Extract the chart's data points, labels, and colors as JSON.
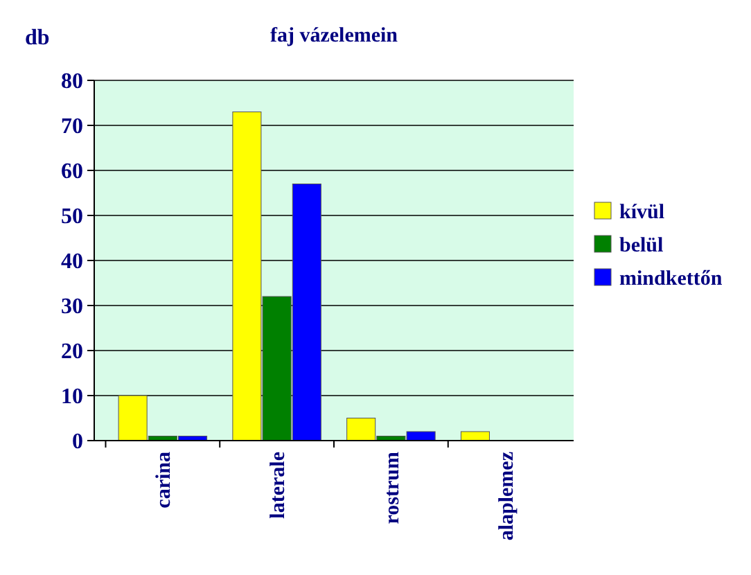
{
  "chart_data": {
    "type": "bar",
    "title": "faj vázelemein",
    "ylabel": "db",
    "categories": [
      "carina",
      "laterale",
      "rostrum",
      "alaplemez"
    ],
    "series": [
      {
        "name": "kívül",
        "color": "#ffff00",
        "values": [
          10,
          73,
          5,
          2
        ]
      },
      {
        "name": "belül",
        "color": "#008000",
        "values": [
          1,
          32,
          1,
          0
        ]
      },
      {
        "name": "mindkettőn",
        "color": "#0000ff",
        "values": [
          1,
          57,
          2,
          0
        ]
      }
    ],
    "ylim": [
      0,
      80
    ],
    "yticks": [
      0,
      10,
      20,
      30,
      40,
      50,
      60,
      70,
      80
    ],
    "grid": "y",
    "legend": "right"
  }
}
